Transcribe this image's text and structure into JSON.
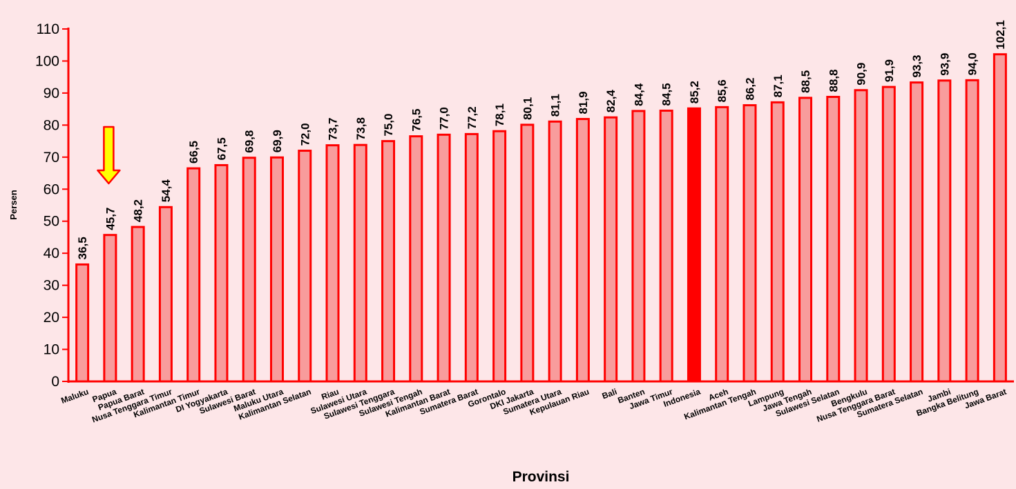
{
  "chart_data": {
    "type": "bar",
    "title": "",
    "xlabel": "Provinsi",
    "ylabel": "Persen",
    "ylim": [
      0,
      110
    ],
    "yticks": [
      0,
      10,
      20,
      30,
      40,
      50,
      60,
      70,
      80,
      90,
      100,
      110
    ],
    "grid": false,
    "categories": [
      "Maluku",
      "Papua",
      "Papua Barat",
      "Nusa Tenggara Timur",
      "Kalimantan Timur",
      "DI Yogyakarta",
      "Sulawesi Barat",
      "Maluku Utara",
      "Kalimantan Selatan",
      "Riau",
      "Sulawesi Utara",
      "Sulawesi Tenggara",
      "Sulawesi Tengah",
      "Kalimantan Barat",
      "Sumatera Barat",
      "Gorontalo",
      "DKI Jakarta",
      "Sumatera Utara",
      "Kepulauan Riau",
      "Bali",
      "Banten",
      "Jawa Timur",
      "Indonesia",
      "Aceh",
      "Kalimantan Tengah",
      "Lampung",
      "Jawa Tengah",
      "Sulawesi Selatan",
      "Bengkulu",
      "Nusa Tenggara Barat",
      "Sumatera Selatan",
      "Jambi",
      "Bangka Belitung",
      "Jawa Barat"
    ],
    "values": [
      36.5,
      45.7,
      48.2,
      54.4,
      66.5,
      67.5,
      69.8,
      69.9,
      72.0,
      73.7,
      73.8,
      75.0,
      76.5,
      77.0,
      77.2,
      78.1,
      80.1,
      81.1,
      81.9,
      82.4,
      84.4,
      84.5,
      85.2,
      85.6,
      86.2,
      87.1,
      88.5,
      88.8,
      90.9,
      91.9,
      93.3,
      93.9,
      94.0,
      102.1
    ],
    "data_labels": [
      "36,5",
      "45,7",
      "48,2",
      "54,4",
      "66,5",
      "67,5",
      "69,8",
      "69,9",
      "72,0",
      "73,7",
      "73,8",
      "75,0",
      "76,5",
      "77,0",
      "77,2",
      "78,1",
      "80,1",
      "81,1",
      "81,9",
      "82,4",
      "84,4",
      "84,5",
      "85,2",
      "85,6",
      "86,2",
      "87,1",
      "88,5",
      "88,8",
      "90,9",
      "91,9",
      "93,3",
      "93,9",
      "94,0",
      "102,1"
    ],
    "highlighted_category": "Indonesia",
    "annotated_category": "Papua",
    "annotation_icon": "down-arrow-icon",
    "colors": {
      "background": "#fde6e8",
      "axis": "#ff0000",
      "bar_fill": "#f89c9c",
      "bar_stroke": "#ff0000",
      "highlight_fill": "#ff0000",
      "arrow_fill": "#ffff00",
      "arrow_stroke": "#ff0000"
    }
  }
}
